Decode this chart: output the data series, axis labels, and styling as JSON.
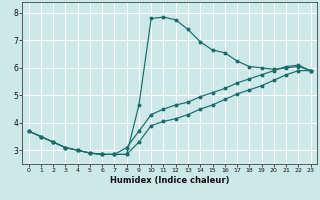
{
  "xlabel": "Humidex (Indice chaleur)",
  "bg_color": "#cce8e8",
  "grid_color": "#ffffff",
  "line_color": "#1a6b6b",
  "xlim": [
    -0.5,
    23.5
  ],
  "ylim": [
    2.5,
    8.4
  ],
  "xticks": [
    0,
    1,
    2,
    3,
    4,
    5,
    6,
    7,
    8,
    9,
    10,
    11,
    12,
    13,
    14,
    15,
    16,
    17,
    18,
    19,
    20,
    21,
    22,
    23
  ],
  "yticks": [
    3,
    4,
    5,
    6,
    7,
    8
  ],
  "line1_x": [
    0,
    1,
    2,
    3,
    4,
    5,
    6,
    7,
    8,
    9,
    10,
    11,
    12,
    13,
    14,
    15,
    16,
    17,
    18,
    19,
    20,
    21,
    22,
    23
  ],
  "line1_y": [
    3.7,
    3.5,
    3.3,
    3.1,
    3.0,
    2.9,
    2.85,
    2.85,
    2.85,
    4.65,
    7.8,
    7.85,
    7.75,
    7.4,
    6.95,
    6.65,
    6.55,
    6.25,
    6.05,
    6.0,
    5.95,
    6.0,
    6.05,
    5.9
  ],
  "line2_x": [
    0,
    1,
    2,
    3,
    4,
    5,
    6,
    7,
    8,
    9,
    10,
    11,
    12,
    13,
    14,
    15,
    16,
    17,
    18,
    19,
    20,
    21,
    22,
    23
  ],
  "line2_y": [
    3.7,
    3.5,
    3.3,
    3.1,
    3.0,
    2.9,
    2.85,
    2.85,
    2.85,
    3.3,
    3.9,
    4.05,
    4.15,
    4.3,
    4.5,
    4.65,
    4.85,
    5.05,
    5.2,
    5.35,
    5.55,
    5.75,
    5.9,
    5.9
  ],
  "line3_x": [
    0,
    1,
    2,
    3,
    4,
    5,
    6,
    7,
    8,
    9,
    10,
    11,
    12,
    13,
    14,
    15,
    16,
    17,
    18,
    19,
    20,
    21,
    22,
    23
  ],
  "line3_y": [
    3.7,
    3.5,
    3.3,
    3.1,
    3.0,
    2.9,
    2.85,
    2.85,
    3.1,
    3.7,
    4.3,
    4.5,
    4.65,
    4.75,
    4.95,
    5.1,
    5.25,
    5.45,
    5.6,
    5.75,
    5.9,
    6.05,
    6.1,
    5.9
  ]
}
